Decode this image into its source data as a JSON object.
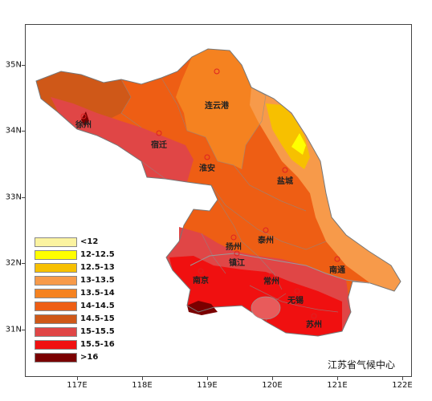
{
  "map": {
    "credit": "江苏省气候中心",
    "lat_ticks": [
      "35N",
      "34N",
      "33N",
      "32N",
      "31N"
    ],
    "lon_ticks": [
      "117E",
      "118E",
      "119E",
      "120E",
      "121E",
      "122E"
    ],
    "cities": [
      {
        "name": "连云港"
      },
      {
        "name": "徐州"
      },
      {
        "name": "宿迁"
      },
      {
        "name": "淮安"
      },
      {
        "name": "盐城"
      },
      {
        "name": "扬州"
      },
      {
        "name": "泰州"
      },
      {
        "name": "南通"
      },
      {
        "name": "镇江"
      },
      {
        "name": "南京"
      },
      {
        "name": "常州"
      },
      {
        "name": "无锡"
      },
      {
        "name": "苏州"
      }
    ],
    "legend": [
      {
        "label": "<12",
        "color": "#fbf3a0"
      },
      {
        "label": "12-12.5",
        "color": "#ffff00"
      },
      {
        "label": "12.5-13",
        "color": "#f7c000"
      },
      {
        "label": "13-13.5",
        "color": "#f79a4a"
      },
      {
        "label": "13.5-14",
        "color": "#f58220"
      },
      {
        "label": "14-14.5",
        "color": "#ee5e14"
      },
      {
        "label": "14.5-15",
        "color": "#cf5818"
      },
      {
        "label": "15-15.5",
        "color": "#e04646"
      },
      {
        "label": "15.5-16",
        "color": "#f01010"
      },
      {
        "label": ">16",
        "color": "#7a0000"
      }
    ]
  }
}
